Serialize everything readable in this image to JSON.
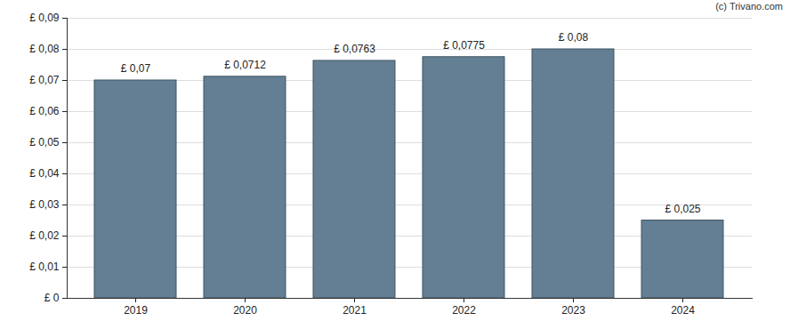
{
  "chart_data": {
    "type": "bar",
    "caption": "(c) Trivano.com",
    "categories": [
      "2019",
      "2020",
      "2021",
      "2022",
      "2023",
      "2024"
    ],
    "values": [
      0.07,
      0.0712,
      0.0763,
      0.0775,
      0.08,
      0.025
    ],
    "value_labels": [
      "£ 0,07",
      "£ 0,0712",
      "£ 0,0763",
      "£ 0,0775",
      "£ 0,08",
      "£ 0,025"
    ],
    "data_labels": true,
    "color": "#647f93",
    "ylim": [
      0,
      0.09
    ],
    "yticks": [
      {
        "value": 0,
        "label": "£ 0"
      },
      {
        "value": 0.01,
        "label": "£ 0,01"
      },
      {
        "value": 0.02,
        "label": "£ 0,02"
      },
      {
        "value": 0.03,
        "label": "£ 0,03"
      },
      {
        "value": 0.04,
        "label": "£ 0,04"
      },
      {
        "value": 0.05,
        "label": "£ 0,05"
      },
      {
        "value": 0.06,
        "label": "£ 0,06"
      },
      {
        "value": 0.07,
        "label": "£ 0,07"
      },
      {
        "value": 0.08,
        "label": "£ 0,08"
      },
      {
        "value": 0.09,
        "label": "£ 0,09"
      }
    ],
    "grid": true
  }
}
